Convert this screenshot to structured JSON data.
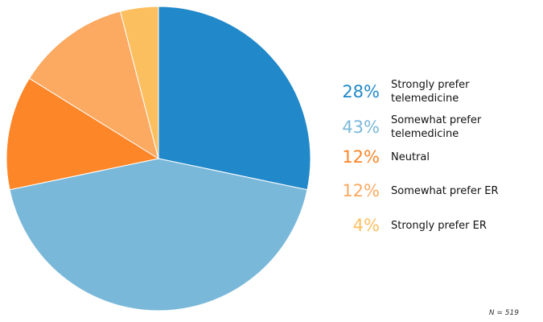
{
  "chart_data": {
    "type": "pie",
    "title": "",
    "slices": [
      {
        "label": "Strongly prefer telemedicine",
        "value": 28,
        "display": "28%",
        "color": "#2188c9"
      },
      {
        "label": "Somewhat prefer telemedicine",
        "value": 43,
        "display": "43%",
        "color": "#7ab8da"
      },
      {
        "label": "Neutral",
        "value": 12,
        "display": "12%",
        "color": "#fd8628"
      },
      {
        "label": "Somewhat prefer ER",
        "value": 12,
        "display": "12%",
        "color": "#fca961"
      },
      {
        "label": "Strongly prefer ER",
        "value": 4,
        "display": "4%",
        "color": "#fcbf60"
      }
    ],
    "legend_position": "right"
  },
  "note": "N  = 519"
}
